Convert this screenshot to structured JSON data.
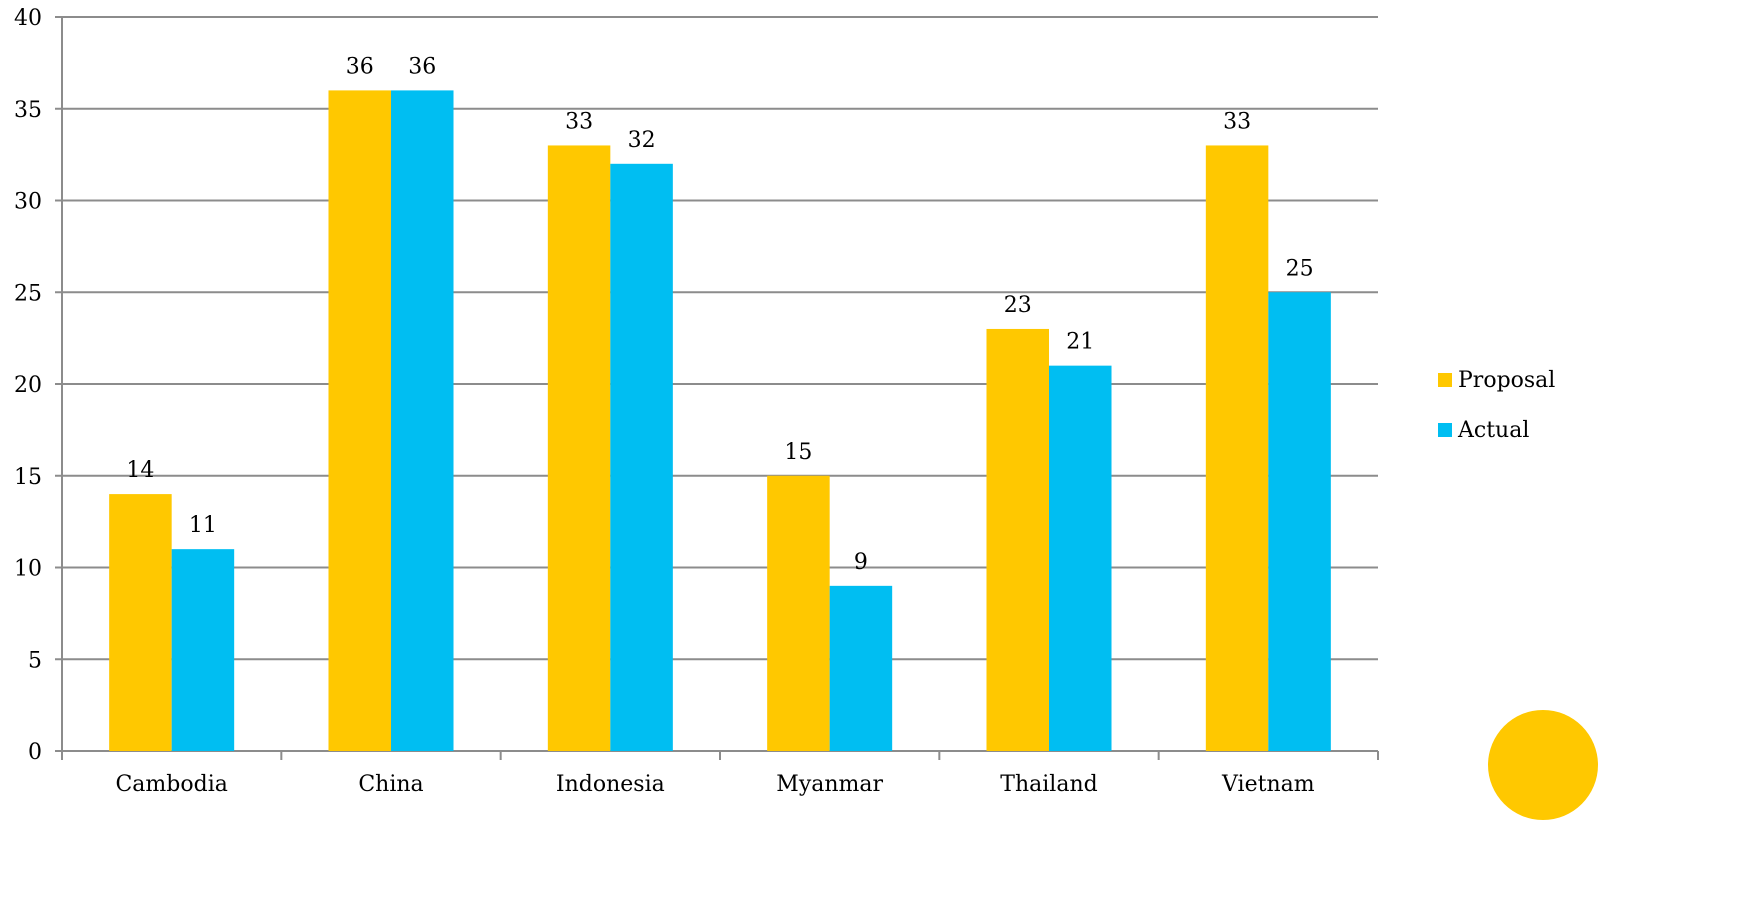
{
  "chart_data": {
    "type": "bar",
    "title": "",
    "xlabel": "",
    "ylabel": "",
    "categories": [
      "Cambodia",
      "China",
      "Indonesia",
      "Myanmar",
      "Thailand",
      "Vietnam"
    ],
    "series": [
      {
        "name": "Proposal",
        "values": [
          14,
          36,
          33,
          15,
          23,
          33
        ],
        "color": "#FFC800"
      },
      {
        "name": "Actual",
        "values": [
          11,
          36,
          32,
          9,
          21,
          25
        ],
        "color": "#00BEF2"
      }
    ],
    "ylim": [
      0,
      40
    ],
    "yticks": [
      0,
      5,
      10,
      15,
      20,
      25,
      30,
      35,
      40
    ],
    "grid": true,
    "legend_position": "right",
    "data_labels": true
  },
  "decoration": {
    "corner_circle_color": "#FFC800"
  }
}
